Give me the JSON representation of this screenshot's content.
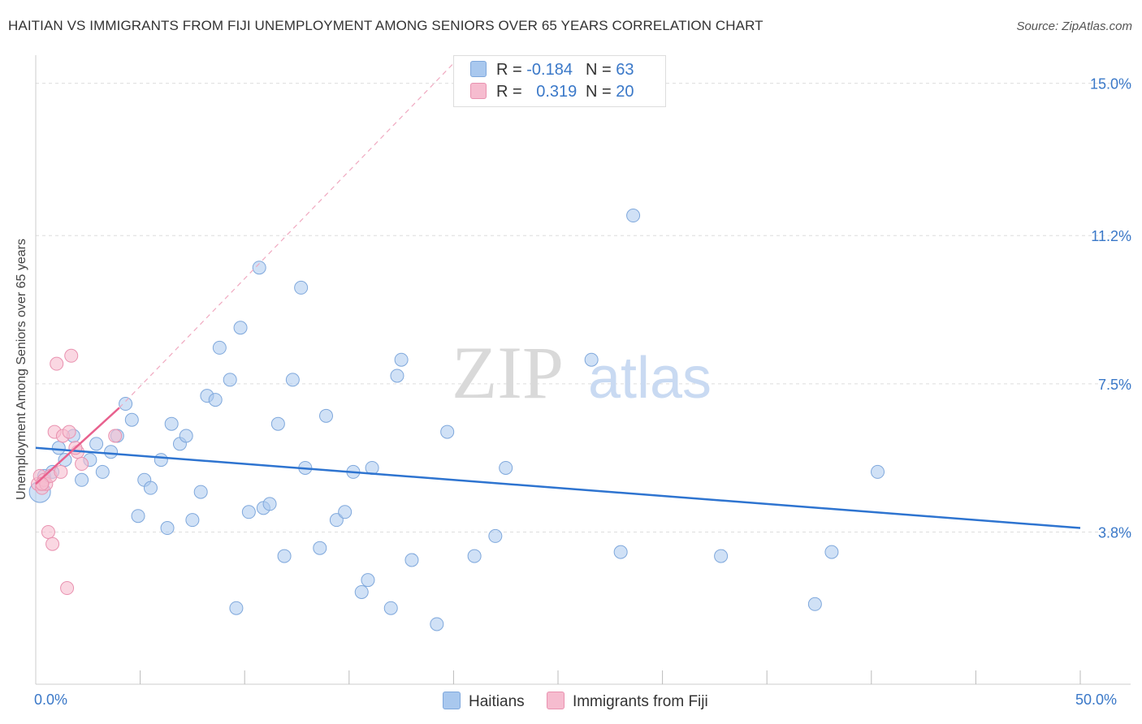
{
  "title": "HAITIAN VS IMMIGRANTS FROM FIJI UNEMPLOYMENT AMONG SENIORS OVER 65 YEARS CORRELATION CHART",
  "source": "Source: ZipAtlas.com",
  "watermark": {
    "zip": "ZIP",
    "atlas": "atlas"
  },
  "legend_top": [
    {
      "r_label": "R = ",
      "r_value": "-0.184",
      "n_label": "N = ",
      "n_value": "63"
    },
    {
      "r_label": "R = ",
      "r_value": "0.319",
      "n_label": "N = ",
      "n_value": "20"
    }
  ],
  "legend_bottom": [
    "Haitians",
    "Immigrants from Fiji"
  ],
  "colors": {
    "blue_fill": "#a9c8ee",
    "blue_stroke": "#7fa8dc",
    "blue_line": "#2e74d0",
    "pink_fill": "#f6bccf",
    "pink_stroke": "#e992b0",
    "pink_line": "#e8618e",
    "axis_text": "#3a78c8",
    "grid": "#dddddd"
  },
  "chart_data": {
    "type": "scatter",
    "title": "HAITIAN VS IMMIGRANTS FROM FIJI UNEMPLOYMENT AMONG SENIORS OVER 65 YEARS CORRELATION CHART",
    "xlabel": "",
    "ylabel": "Unemployment Among Seniors over 65 years",
    "xlim": [
      0,
      50
    ],
    "ylim": [
      0,
      15.5
    ],
    "x_tick_labels": [
      "0.0%",
      "50.0%"
    ],
    "y_ticks": [
      3.8,
      7.5,
      11.2,
      15.0
    ],
    "y_tick_labels": [
      "3.8%",
      "7.5%",
      "11.2%",
      "15.0%"
    ],
    "grid": true,
    "series": [
      {
        "name": "Haitians",
        "color": "#a9c8ee",
        "r": -0.184,
        "n": 63,
        "trend": {
          "x": [
            0,
            50
          ],
          "y": [
            5.9,
            3.9
          ]
        },
        "points": [
          {
            "x": 0.2,
            "y": 4.8,
            "big": true
          },
          {
            "x": 0.4,
            "y": 5.2
          },
          {
            "x": 0.8,
            "y": 5.3
          },
          {
            "x": 1.1,
            "y": 5.9
          },
          {
            "x": 1.4,
            "y": 5.6
          },
          {
            "x": 1.8,
            "y": 6.2
          },
          {
            "x": 2.2,
            "y": 5.1
          },
          {
            "x": 2.6,
            "y": 5.6
          },
          {
            "x": 2.9,
            "y": 6.0
          },
          {
            "x": 3.2,
            "y": 5.3
          },
          {
            "x": 3.6,
            "y": 5.8
          },
          {
            "x": 3.9,
            "y": 6.2
          },
          {
            "x": 4.3,
            "y": 7.0
          },
          {
            "x": 4.6,
            "y": 6.6
          },
          {
            "x": 4.9,
            "y": 4.2
          },
          {
            "x": 5.2,
            "y": 5.1
          },
          {
            "x": 5.5,
            "y": 4.9
          },
          {
            "x": 6.0,
            "y": 5.6
          },
          {
            "x": 6.3,
            "y": 3.9
          },
          {
            "x": 6.5,
            "y": 6.5
          },
          {
            "x": 6.9,
            "y": 6.0
          },
          {
            "x": 7.2,
            "y": 6.2
          },
          {
            "x": 7.5,
            "y": 4.1
          },
          {
            "x": 7.9,
            "y": 4.8
          },
          {
            "x": 8.2,
            "y": 7.2
          },
          {
            "x": 8.6,
            "y": 7.1
          },
          {
            "x": 8.8,
            "y": 8.4
          },
          {
            "x": 9.3,
            "y": 7.6
          },
          {
            "x": 9.6,
            "y": 1.9
          },
          {
            "x": 9.8,
            "y": 8.9
          },
          {
            "x": 10.2,
            "y": 4.3
          },
          {
            "x": 10.7,
            "y": 10.4
          },
          {
            "x": 10.9,
            "y": 4.4
          },
          {
            "x": 11.2,
            "y": 4.5
          },
          {
            "x": 11.6,
            "y": 6.5
          },
          {
            "x": 11.9,
            "y": 3.2
          },
          {
            "x": 12.3,
            "y": 7.6
          },
          {
            "x": 12.7,
            "y": 9.9
          },
          {
            "x": 12.9,
            "y": 5.4
          },
          {
            "x": 13.6,
            "y": 3.4
          },
          {
            "x": 13.9,
            "y": 6.7
          },
          {
            "x": 14.4,
            "y": 4.1
          },
          {
            "x": 14.8,
            "y": 4.3
          },
          {
            "x": 15.2,
            "y": 5.3
          },
          {
            "x": 15.6,
            "y": 2.3
          },
          {
            "x": 15.9,
            "y": 2.6
          },
          {
            "x": 16.1,
            "y": 5.4
          },
          {
            "x": 17.0,
            "y": 1.9
          },
          {
            "x": 17.3,
            "y": 7.7
          },
          {
            "x": 17.5,
            "y": 8.1
          },
          {
            "x": 18.0,
            "y": 3.1
          },
          {
            "x": 19.2,
            "y": 1.5
          },
          {
            "x": 19.7,
            "y": 6.3
          },
          {
            "x": 21.0,
            "y": 3.2
          },
          {
            "x": 22.0,
            "y": 3.7
          },
          {
            "x": 22.5,
            "y": 5.4
          },
          {
            "x": 26.6,
            "y": 8.1
          },
          {
            "x": 28.0,
            "y": 3.3
          },
          {
            "x": 28.6,
            "y": 11.7
          },
          {
            "x": 32.8,
            "y": 3.2
          },
          {
            "x": 37.3,
            "y": 2.0
          },
          {
            "x": 38.1,
            "y": 3.3
          },
          {
            "x": 40.3,
            "y": 5.3
          }
        ]
      },
      {
        "name": "Immigrants from Fiji",
        "color": "#f6bccf",
        "r": 0.319,
        "n": 20,
        "trend": {
          "x": [
            0,
            4.0
          ],
          "y": [
            5.0,
            6.9
          ]
        },
        "trend_extended": {
          "x": [
            4.0,
            20.0
          ],
          "y": [
            6.9,
            15.5
          ]
        },
        "points": [
          {
            "x": 0.1,
            "y": 5.0
          },
          {
            "x": 0.2,
            "y": 5.2
          },
          {
            "x": 0.3,
            "y": 4.9
          },
          {
            "x": 0.4,
            "y": 5.1
          },
          {
            "x": 0.5,
            "y": 5.0
          },
          {
            "x": 0.6,
            "y": 3.8
          },
          {
            "x": 0.7,
            "y": 5.2
          },
          {
            "x": 0.8,
            "y": 3.5
          },
          {
            "x": 0.9,
            "y": 6.3
          },
          {
            "x": 1.0,
            "y": 8.0
          },
          {
            "x": 1.2,
            "y": 5.3
          },
          {
            "x": 1.3,
            "y": 6.2
          },
          {
            "x": 1.5,
            "y": 2.4
          },
          {
            "x": 1.6,
            "y": 6.3
          },
          {
            "x": 1.7,
            "y": 8.2
          },
          {
            "x": 2.0,
            "y": 5.8
          },
          {
            "x": 2.2,
            "y": 5.5
          },
          {
            "x": 3.8,
            "y": 6.2
          },
          {
            "x": 0.3,
            "y": 5.0
          },
          {
            "x": 1.9,
            "y": 5.9
          }
        ]
      }
    ]
  }
}
